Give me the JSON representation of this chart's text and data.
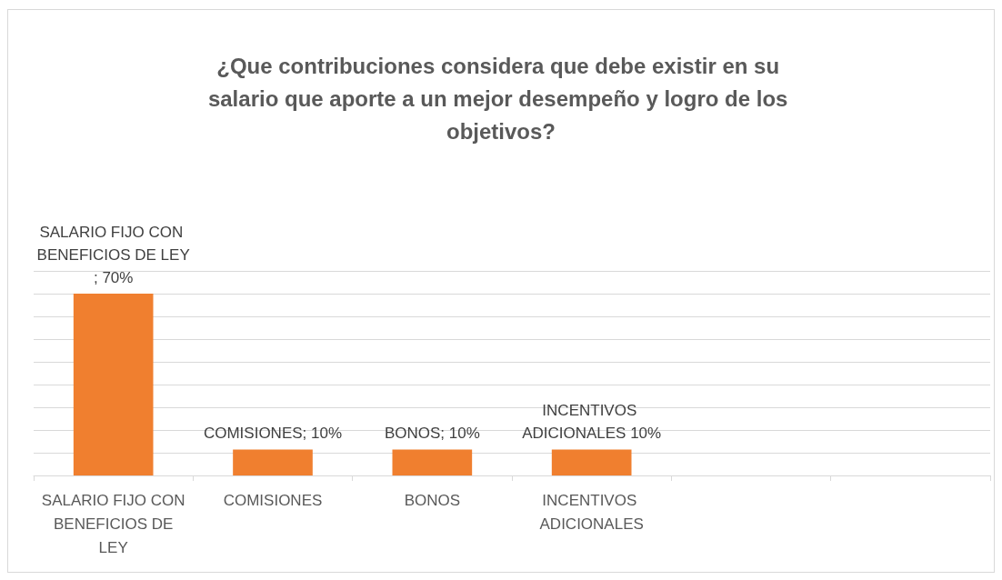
{
  "chart_data": {
    "type": "bar",
    "title": "¿Que contribuciones considera que debe existir en su salario que aporte a un mejor desempeño y logro de los objetivos?",
    "categories": [
      "SALARIO FIJO CON BENEFICIOS DE LEY",
      "COMISIONES",
      "BONOS",
      "INCENTIVOS ADICIONALES",
      null,
      null
    ],
    "values": [
      70,
      10,
      10,
      10,
      null,
      null
    ],
    "value_labels": [
      "SALARIO FIJO CON BENEFICIOS DE LEY; 70%",
      "COMISIONES; 10%",
      "BONOS; 10%",
      "INCENTIVOS ADICIONALES 10%",
      null,
      null
    ],
    "color": "#f07f2f",
    "ylim": [
      0,
      78.75
    ],
    "yticks": [
      {
        "value": 0,
        "label": null
      },
      {
        "value": 8.75,
        "label": null
      },
      {
        "value": 17.5,
        "label": null
      },
      {
        "value": 26.25,
        "label": null
      },
      {
        "value": 35,
        "label": null
      },
      {
        "value": 43.75,
        "label": null
      },
      {
        "value": 52.5,
        "label": null
      },
      {
        "value": 61.25,
        "label": null
      },
      {
        "value": 70,
        "label": null
      },
      {
        "value": 78.75,
        "label": null
      }
    ],
    "grid": "y",
    "tick_labels": "x"
  }
}
